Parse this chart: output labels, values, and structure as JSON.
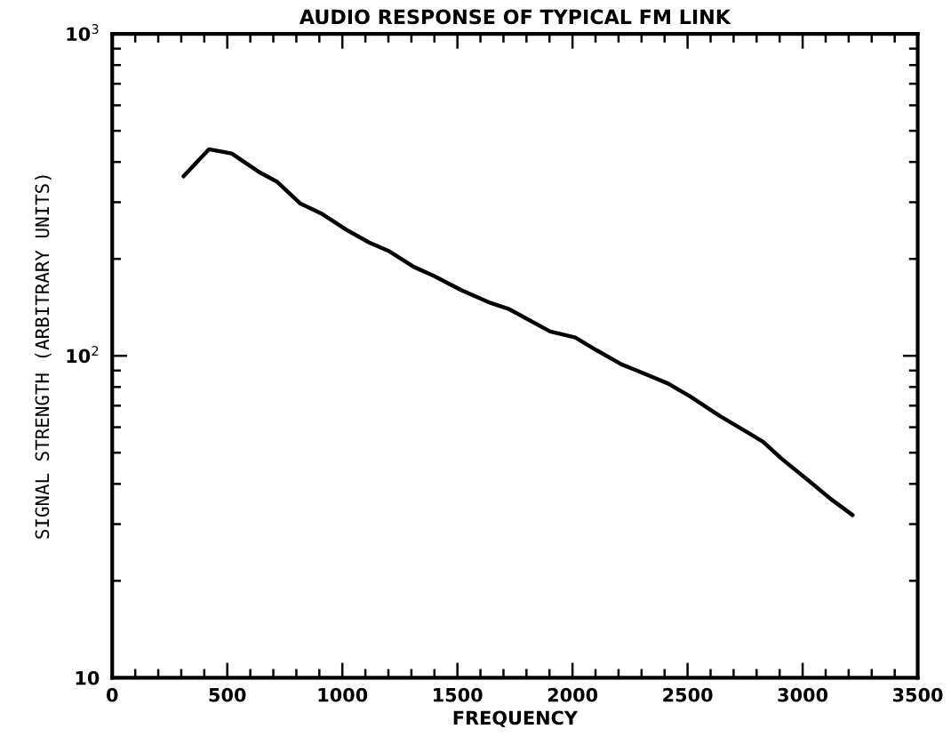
{
  "chart_data": {
    "type": "line",
    "title": "AUDIO RESPONSE OF TYPICAL FM LINK",
    "xlabel": "FREQUENCY",
    "ylabel": "SIGNAL STRENGTH (ARBITRARY UNITS)",
    "log": "y",
    "xlim": [
      0,
      3500
    ],
    "xticks": [
      0,
      500,
      1000,
      1500,
      2000,
      2500,
      3000,
      3500
    ],
    "ylim": [
      10,
      1000
    ],
    "yticks": [
      10,
      {
        "value": 100,
        "label": "10$^{2}$"
      },
      {
        "value": 1000,
        "label": "10$^{3}$"
      }
    ],
    "grid": false,
    "marker": "none",
    "line_style": "solid",
    "series": [
      {
        "color": "#000000",
        "x": [
          310,
          420,
          519,
          636,
          717,
          818,
          907,
          1023,
          1116,
          1205,
          1310,
          1399,
          1516,
          1643,
          1721,
          1903,
          2012,
          2105,
          2213,
          2279,
          2415,
          2508,
          2640,
          2775,
          2829,
          2907,
          3043,
          3120,
          3217
        ],
        "values": [
          361,
          438,
          425,
          373,
          347,
          297,
          277,
          245,
          225,
          211,
          189,
          177,
          160,
          146,
          140,
          119,
          114,
          104,
          94,
          90,
          82,
          75,
          65,
          57,
          54,
          48,
          40,
          36,
          32
        ]
      }
    ]
  }
}
